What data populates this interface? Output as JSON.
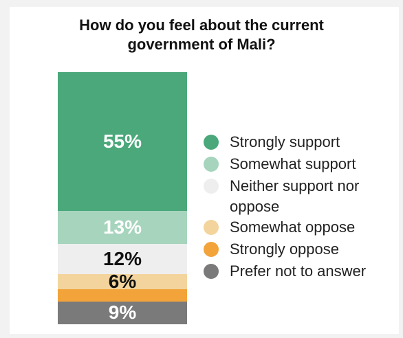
{
  "title_line1": "How do you feel about the current",
  "title_line2": "government of Mali?",
  "chart_data": {
    "type": "bar",
    "stacked": true,
    "orientation": "vertical",
    "title": "How do you feel about the current government of Mali?",
    "categories": [
      ""
    ],
    "series": [
      {
        "name": "Strongly support",
        "values": [
          55
        ],
        "color": "#4aa87a",
        "label": "55%",
        "label_color": "#ffffff"
      },
      {
        "name": "Somewhat support",
        "values": [
          13
        ],
        "color": "#a6d4bd",
        "label": "13%",
        "label_color": "#ffffff"
      },
      {
        "name": "Neither support nor oppose",
        "values": [
          12
        ],
        "color": "#eeeeee",
        "label": "12%",
        "label_color": "#111111"
      },
      {
        "name": "Somewhat oppose",
        "values": [
          6
        ],
        "color": "#f2d49c",
        "label": "6%",
        "label_color": "#111111"
      },
      {
        "name": "Strongly oppose",
        "values": [
          5
        ],
        "color": "#f2a33a",
        "label": "",
        "label_color": "#111111"
      },
      {
        "name": "Prefer not to answer",
        "values": [
          9
        ],
        "color": "#7a7a7a",
        "label": "9%",
        "label_color": "#ffffff"
      }
    ],
    "legend_position": "right",
    "grid": false
  },
  "legend": [
    {
      "label": "Strongly support",
      "color": "#4aa87a"
    },
    {
      "label": "Somewhat support",
      "color": "#a6d4bd"
    },
    {
      "label": "Neither support nor oppose",
      "color": "#eeeeee"
    },
    {
      "label": "Somewhat oppose",
      "color": "#f2d49c"
    },
    {
      "label": "Strongly oppose",
      "color": "#f2a33a"
    },
    {
      "label": "Prefer not to answer",
      "color": "#7a7a7a"
    }
  ]
}
